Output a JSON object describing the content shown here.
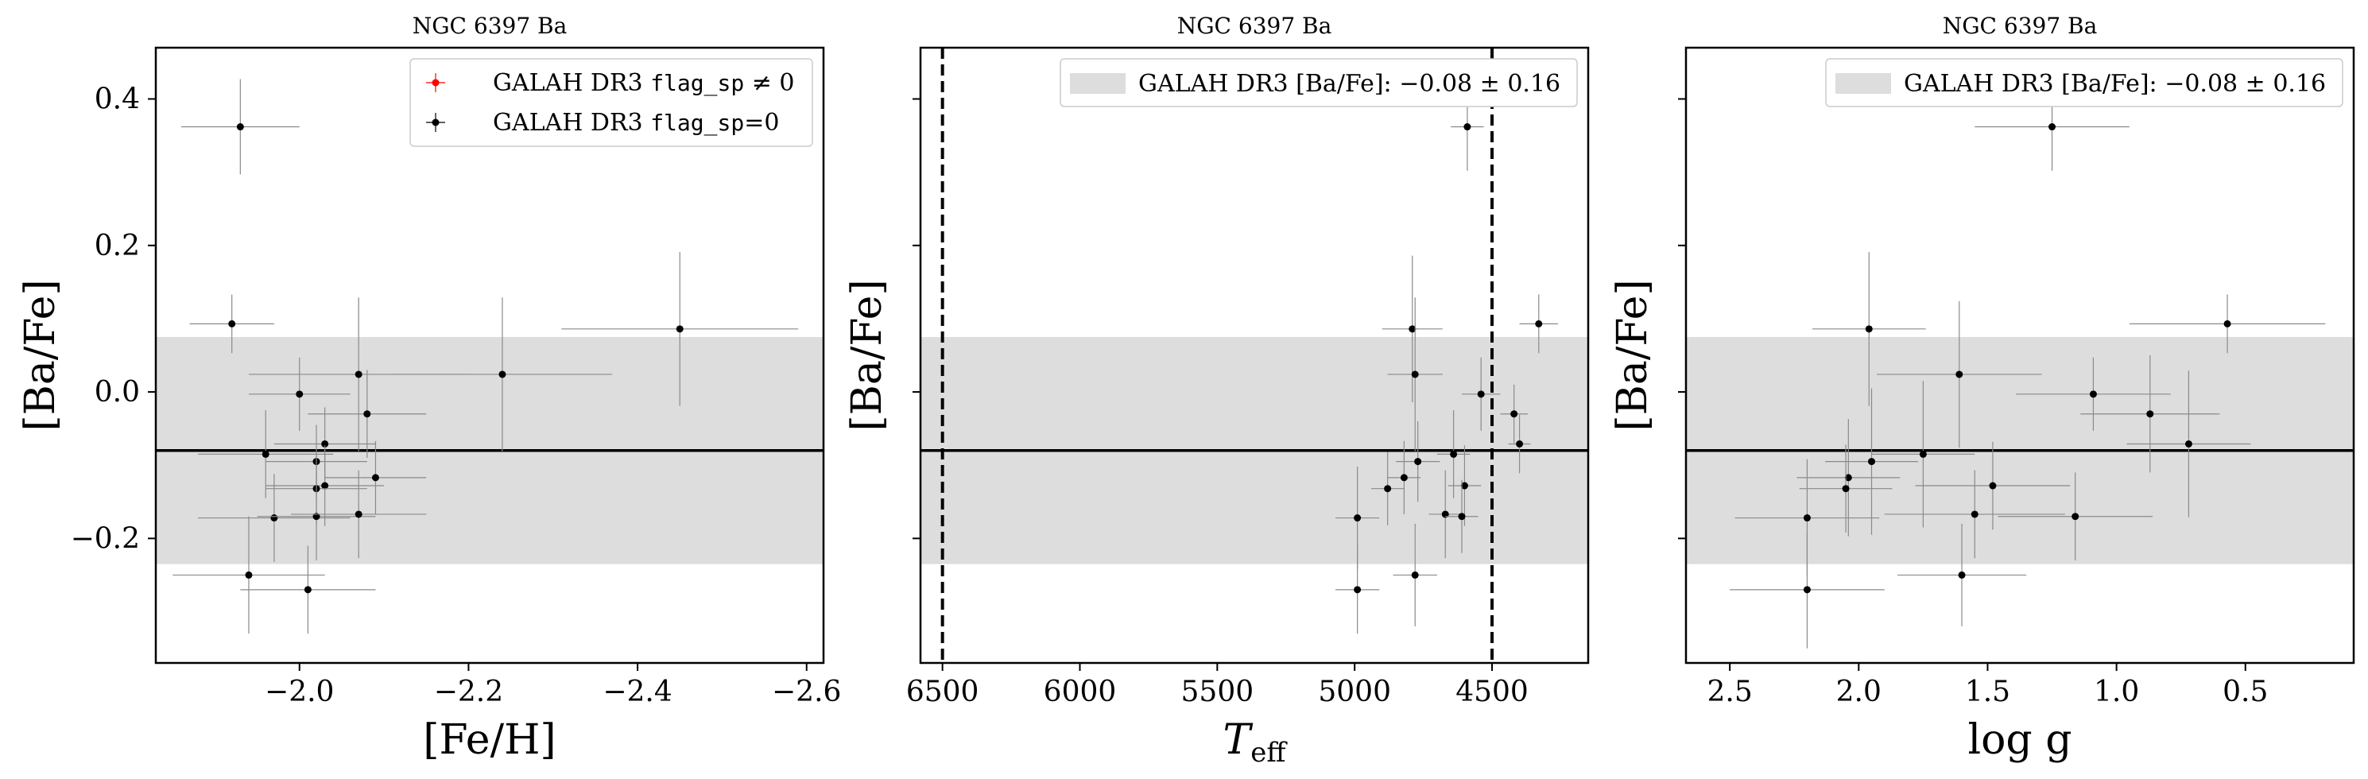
{
  "chart_data": [
    {
      "type": "scatter",
      "title": "NGC 6397 Ba",
      "xlabel": "[Fe/H]",
      "ylabel": "[Ba/Fe]",
      "xlim": [
        -1.83,
        -2.62
      ],
      "ylim": [
        -0.37,
        0.47
      ],
      "xticks": [
        -2.0,
        -2.2,
        -2.4,
        -2.6
      ],
      "xtick_labels": [
        "−2.0",
        "−2.2",
        "−2.4",
        "−2.6"
      ],
      "yticks": [
        0.4,
        0.2,
        0.0,
        -0.2
      ],
      "ytick_labels": [
        "0.4",
        "0.2",
        "0.0",
        "−0.2"
      ],
      "band": {
        "center": -0.08,
        "sigma": 0.155
      },
      "hline": -0.08,
      "legend": {
        "position": "top-right",
        "entries": [
          {
            "prefix": "GALAH DR3 ",
            "code": "flag_sp",
            "suffix": " ≠ 0",
            "color": "#ff0000"
          },
          {
            "prefix": "GALAH DR3 ",
            "code": "flag_sp",
            "suffix": "=0",
            "color": "#000000"
          }
        ]
      },
      "points": [
        {
          "x": -1.93,
          "y": 0.362,
          "xerr": 0.07,
          "yerr": 0.065
        },
        {
          "x": -1.92,
          "y": 0.093,
          "xerr": 0.05,
          "yerr": 0.04
        },
        {
          "x": -2.07,
          "y": 0.024,
          "xerr": 0.13,
          "yerr": 0.105
        },
        {
          "x": -2.45,
          "y": 0.086,
          "xerr": 0.14,
          "yerr": 0.105
        },
        {
          "x": -2.0,
          "y": -0.003,
          "xerr": 0.06,
          "yerr": 0.05
        },
        {
          "x": -2.08,
          "y": -0.03,
          "xerr": 0.07,
          "yerr": 0.06
        },
        {
          "x": -2.24,
          "y": 0.024,
          "xerr": 0.13,
          "yerr": 0.105
        },
        {
          "x": -2.03,
          "y": -0.071,
          "xerr": 0.06,
          "yerr": 0.05
        },
        {
          "x": -1.96,
          "y": -0.085,
          "xerr": 0.08,
          "yerr": 0.06
        },
        {
          "x": -2.02,
          "y": -0.095,
          "xerr": 0.06,
          "yerr": 0.05
        },
        {
          "x": -2.09,
          "y": -0.117,
          "xerr": 0.06,
          "yerr": 0.05
        },
        {
          "x": -2.03,
          "y": -0.128,
          "xerr": 0.07,
          "yerr": 0.055
        },
        {
          "x": -2.02,
          "y": -0.132,
          "xerr": 0.06,
          "yerr": 0.05
        },
        {
          "x": -1.97,
          "y": -0.172,
          "xerr": 0.09,
          "yerr": 0.06
        },
        {
          "x": -2.02,
          "y": -0.17,
          "xerr": 0.07,
          "yerr": 0.06
        },
        {
          "x": -2.07,
          "y": -0.167,
          "xerr": 0.08,
          "yerr": 0.06
        },
        {
          "x": -1.94,
          "y": -0.25,
          "xerr": 0.09,
          "yerr": 0.08
        },
        {
          "x": -2.01,
          "y": -0.27,
          "xerr": 0.08,
          "yerr": 0.06
        }
      ]
    },
    {
      "type": "scatter",
      "title": "NGC 6397 Ba",
      "xlabel": "T",
      "xlabel_sub": "eff",
      "ylabel": "[Ba/Fe]",
      "xlim": [
        6580,
        4150
      ],
      "ylim": [
        -0.37,
        0.47
      ],
      "xticks": [
        6500,
        6000,
        5500,
        5000,
        4500
      ],
      "xtick_labels": [
        "6500",
        "6000",
        "5500",
        "5000",
        "4500"
      ],
      "yticks": [
        0.4,
        0.2,
        0.0,
        -0.2
      ],
      "ytick_labels": [
        "",
        "",
        "",
        ""
      ],
      "band": {
        "center": -0.08,
        "sigma": 0.155
      },
      "hline": -0.08,
      "vlines": [
        6500,
        4500
      ],
      "legend": {
        "position": "top-right",
        "entries": [
          {
            "text": "GALAH DR3 [Ba/Fe]: −0.08 ± 0.16",
            "swatch": "#dddddd"
          }
        ]
      },
      "points": [
        {
          "x": 4590,
          "y": 0.362,
          "xerr": 60,
          "yerr": 0.06
        },
        {
          "x": 4330,
          "y": 0.093,
          "xerr": 70,
          "yerr": 0.04
        },
        {
          "x": 4790,
          "y": 0.086,
          "xerr": 110,
          "yerr": 0.1
        },
        {
          "x": 4780,
          "y": 0.024,
          "xerr": 100,
          "yerr": 0.105
        },
        {
          "x": 4540,
          "y": -0.003,
          "xerr": 70,
          "yerr": 0.05
        },
        {
          "x": 4420,
          "y": -0.03,
          "xerr": 50,
          "yerr": 0.04
        },
        {
          "x": 4400,
          "y": -0.071,
          "xerr": 40,
          "yerr": 0.04
        },
        {
          "x": 4640,
          "y": -0.085,
          "xerr": 60,
          "yerr": 0.06
        },
        {
          "x": 4770,
          "y": -0.095,
          "xerr": 80,
          "yerr": 0.055
        },
        {
          "x": 4820,
          "y": -0.117,
          "xerr": 60,
          "yerr": 0.05
        },
        {
          "x": 4880,
          "y": -0.132,
          "xerr": 60,
          "yerr": 0.05
        },
        {
          "x": 4600,
          "y": -0.128,
          "xerr": 60,
          "yerr": 0.055
        },
        {
          "x": 4990,
          "y": -0.172,
          "xerr": 80,
          "yerr": 0.07
        },
        {
          "x": 4670,
          "y": -0.167,
          "xerr": 60,
          "yerr": 0.06
        },
        {
          "x": 4610,
          "y": -0.17,
          "xerr": 60,
          "yerr": 0.05
        },
        {
          "x": 4780,
          "y": -0.25,
          "xerr": 80,
          "yerr": 0.07
        },
        {
          "x": 4990,
          "y": -0.27,
          "xerr": 80,
          "yerr": 0.06
        }
      ]
    },
    {
      "type": "scatter",
      "title": "NGC 6397 Ba",
      "xlabel": "log g",
      "ylabel": "[Ba/Fe]",
      "xlim": [
        2.67,
        0.08
      ],
      "ylim": [
        -0.37,
        0.47
      ],
      "xticks": [
        2.5,
        2.0,
        1.5,
        1.0,
        0.5
      ],
      "xtick_labels": [
        "2.5",
        "2.0",
        "1.5",
        "1.0",
        "0.5"
      ],
      "yticks": [
        0.4,
        0.2,
        0.0,
        -0.2
      ],
      "ytick_labels": [
        "",
        "",
        "",
        ""
      ],
      "band": {
        "center": -0.08,
        "sigma": 0.155
      },
      "hline": -0.08,
      "legend": {
        "position": "top-right",
        "entries": [
          {
            "text": "GALAH DR3 [Ba/Fe]: −0.08 ± 0.16",
            "swatch": "#dddddd"
          }
        ]
      },
      "points": [
        {
          "x": 1.25,
          "y": 0.362,
          "xerr": 0.3,
          "yerr": 0.06
        },
        {
          "x": 0.57,
          "y": 0.093,
          "xerr": 0.38,
          "yerr": 0.04
        },
        {
          "x": 1.96,
          "y": 0.086,
          "xerr": 0.22,
          "yerr": 0.105
        },
        {
          "x": 1.61,
          "y": 0.024,
          "xerr": 0.32,
          "yerr": 0.1
        },
        {
          "x": 1.09,
          "y": -0.003,
          "xerr": 0.3,
          "yerr": 0.05
        },
        {
          "x": 0.87,
          "y": -0.03,
          "xerr": 0.27,
          "yerr": 0.08
        },
        {
          "x": 0.72,
          "y": -0.071,
          "xerr": 0.24,
          "yerr": 0.1
        },
        {
          "x": 1.75,
          "y": -0.085,
          "xerr": 0.2,
          "yerr": 0.1
        },
        {
          "x": 1.95,
          "y": -0.095,
          "xerr": 0.18,
          "yerr": 0.1
        },
        {
          "x": 2.04,
          "y": -0.117,
          "xerr": 0.2,
          "yerr": 0.08
        },
        {
          "x": 2.05,
          "y": -0.132,
          "xerr": 0.18,
          "yerr": 0.06
        },
        {
          "x": 1.48,
          "y": -0.128,
          "xerr": 0.3,
          "yerr": 0.06
        },
        {
          "x": 2.2,
          "y": -0.172,
          "xerr": 0.28,
          "yerr": 0.08
        },
        {
          "x": 1.55,
          "y": -0.167,
          "xerr": 0.35,
          "yerr": 0.06
        },
        {
          "x": 1.16,
          "y": -0.17,
          "xerr": 0.3,
          "yerr": 0.06
        },
        {
          "x": 1.6,
          "y": -0.25,
          "xerr": 0.25,
          "yerr": 0.07
        },
        {
          "x": 2.2,
          "y": -0.27,
          "xerr": 0.3,
          "yerr": 0.08
        }
      ]
    }
  ]
}
